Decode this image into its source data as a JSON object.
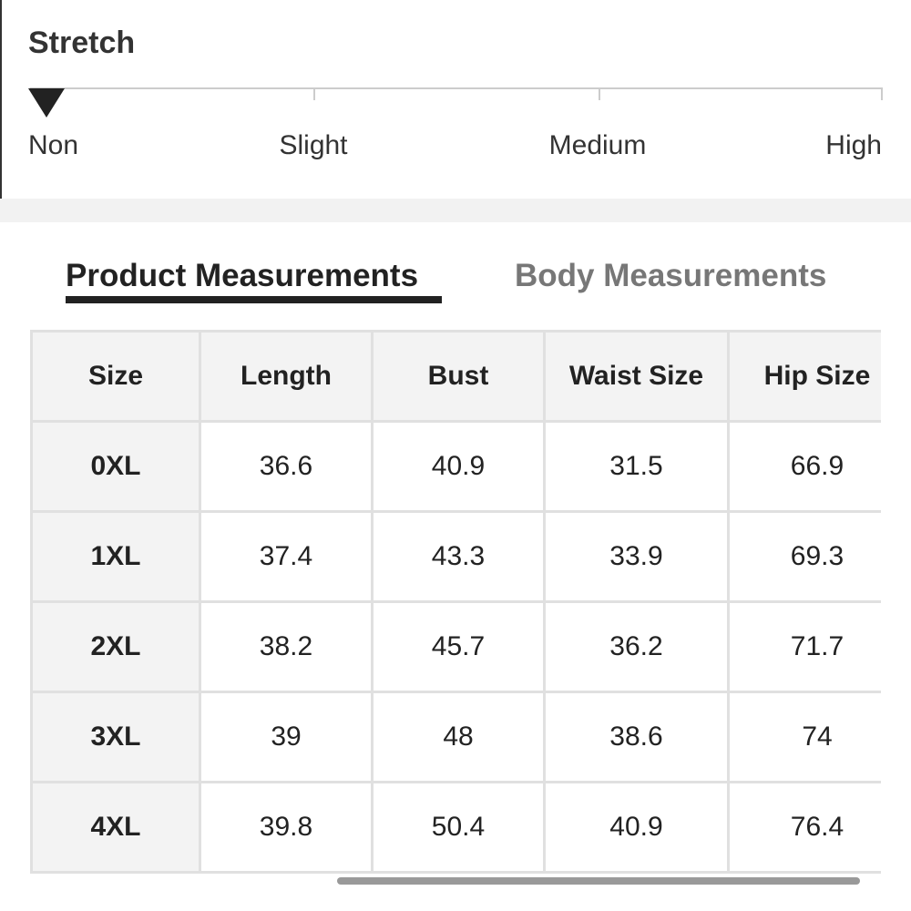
{
  "stretch": {
    "title": "Stretch",
    "levels": [
      "Non",
      "Slight",
      "Medium",
      "High"
    ]
  },
  "tabs": [
    "Product Measurements",
    "Body Measurements"
  ],
  "table": {
    "header": [
      "Size",
      "Length",
      "Bust",
      "Waist Size",
      "Hip Size"
    ],
    "rows": [
      [
        "0XL",
        "36.6",
        "40.9",
        "31.5",
        "66.9"
      ],
      [
        "1XL",
        "37.4",
        "43.3",
        "33.9",
        "69.3"
      ],
      [
        "2XL",
        "38.2",
        "45.7",
        "36.2",
        "71.7"
      ],
      [
        "3XL",
        "39",
        "48",
        "38.6",
        "74"
      ],
      [
        "4XL",
        "39.8",
        "50.4",
        "40.9",
        "76.4"
      ]
    ]
  }
}
